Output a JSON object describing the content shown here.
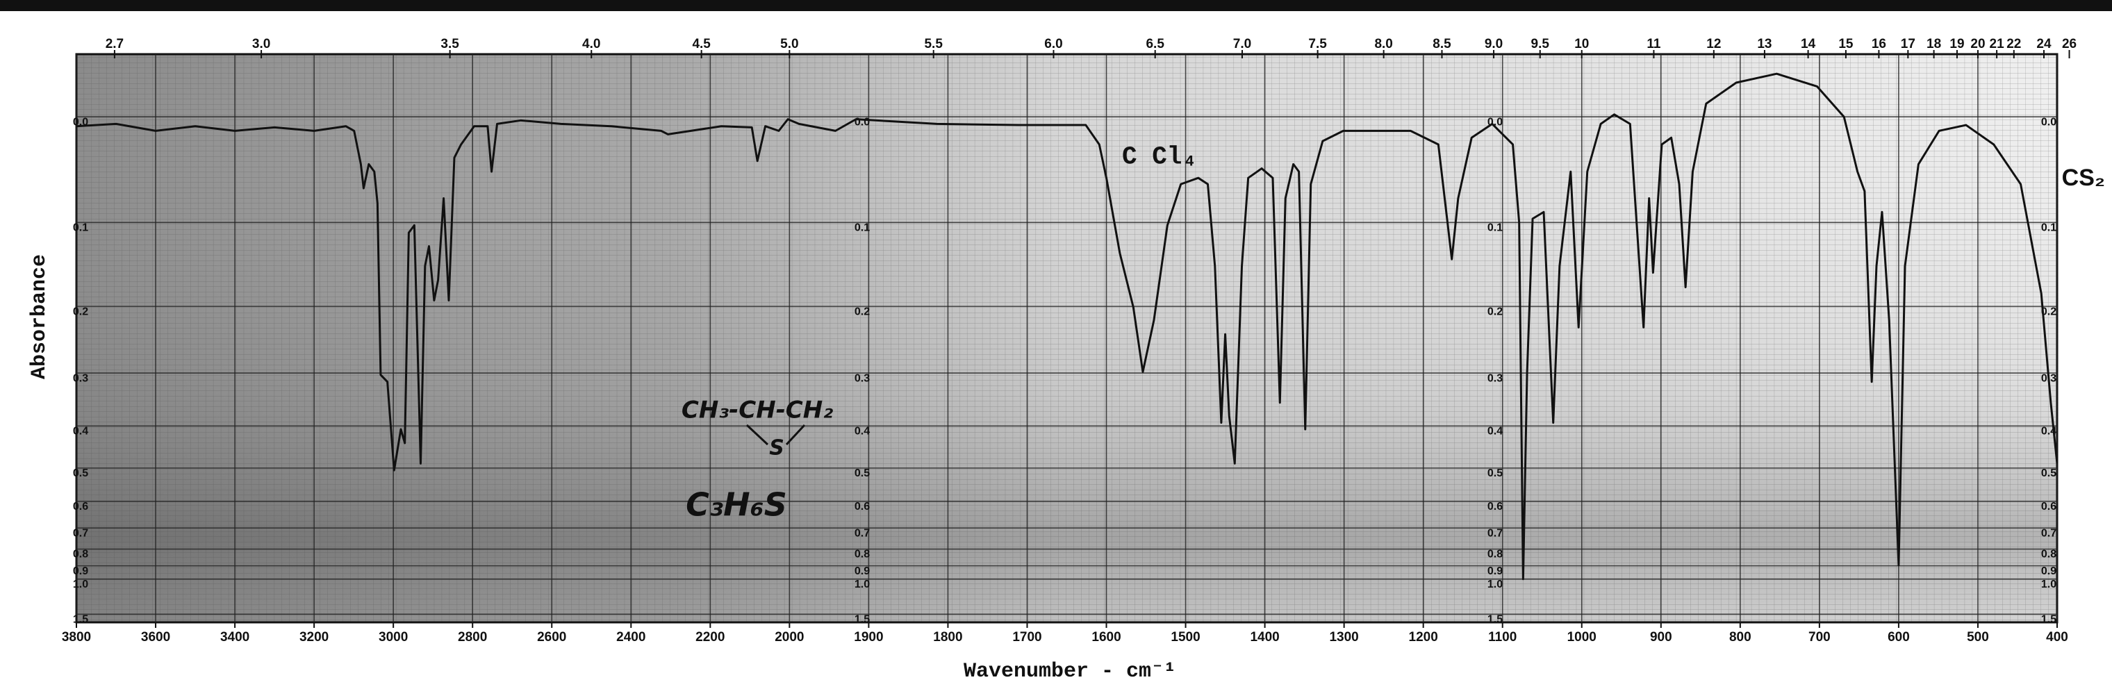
{
  "chart_data": {
    "type": "line",
    "x_label": "Wavenumber - cm⁻¹",
    "y_label": "Absorbance",
    "annotations": [
      "C Cl₄",
      "CS₂",
      "CH₃-CH-CH₂",
      "S",
      "C₃H₆S"
    ],
    "color": "#111111",
    "grid": true,
    "xlim": [
      3800,
      400
    ],
    "xticks": [
      3800,
      3600,
      3400,
      3200,
      3000,
      2800,
      2600,
      2400,
      2200,
      2000,
      1900,
      1800,
      1700,
      1600,
      1500,
      1400,
      1300,
      1200,
      1100,
      1000,
      900,
      800,
      700,
      600,
      500,
      400
    ],
    "x2ticks": [
      2.7,
      {
        "value": 3,
        "label": "3.0"
      },
      3.5,
      {
        "value": 4,
        "label": "4.0"
      },
      4.5,
      {
        "value": 5,
        "label": "5.0"
      },
      5.5,
      {
        "value": 6,
        "label": "6.0"
      },
      6.5,
      {
        "value": 7,
        "label": "7.0"
      },
      7.5,
      {
        "value": 8,
        "label": "8.0"
      },
      8.5,
      {
        "value": 9,
        "label": "9.0"
      },
      9.5,
      10,
      11,
      12,
      13,
      14,
      15,
      16,
      17,
      18,
      19,
      20,
      21,
      22,
      24,
      26
    ],
    "ylim": [
      -0.05,
      1.8
    ],
    "yticks": [
      {
        "value": 0,
        "label": "0.0"
      },
      0.1,
      0.2,
      0.3,
      0.4,
      0.5,
      0.6,
      0.7,
      0.8,
      0.9,
      {
        "value": 1,
        "label": "1.0"
      },
      1.5
    ],
    "x": [
      3800,
      3700,
      3600,
      3500,
      3400,
      3300,
      3200,
      3120,
      3099,
      3082,
      3075,
      3062,
      3048,
      3040,
      3032,
      3015,
      2998,
      2981,
      2971,
      2961,
      2947,
      2931,
      2920,
      2910,
      2897,
      2887,
      2873,
      2860,
      2846,
      2829,
      2796,
      2762,
      2752,
      2738,
      2678,
      2577,
      2450,
      2324,
      2307,
      2172,
      2095,
      2081,
      2061,
      2027,
      2004,
      1988,
      1942,
      1916,
      1814,
      1711,
      1626,
      1609,
      1600,
      1583,
      1566,
      1554,
      1540,
      1523,
      1506,
      1484,
      1472,
      1463,
      1455,
      1450,
      1445,
      1438,
      1429,
      1421,
      1404,
      1390,
      1381,
      1374,
      1364,
      1357,
      1349,
      1342,
      1327,
      1301,
      1216,
      1181,
      1164,
      1156,
      1139,
      1113,
      1087,
      1079,
      1074,
      1069,
      1062,
      1048,
      1036,
      1028,
      1014,
      1004,
      993,
      976,
      959,
      939,
      922,
      915,
      910,
      899,
      887,
      877,
      869,
      860,
      843,
      805,
      754,
      703,
      669,
      652,
      643,
      634,
      628,
      621,
      612,
      600,
      592,
      575,
      549,
      515,
      480,
      446,
      420,
      408,
      400
    ],
    "values": [
      0.008,
      0.006,
      0.012,
      0.008,
      0.012,
      0.009,
      0.012,
      0.008,
      0.012,
      0.042,
      0.065,
      0.042,
      0.049,
      0.08,
      0.303,
      0.315,
      0.506,
      0.407,
      0.438,
      0.111,
      0.103,
      0.488,
      0.149,
      0.126,
      0.192,
      0.166,
      0.075,
      0.192,
      0.036,
      0.024,
      0.008,
      0.008,
      0.049,
      0.006,
      0.003,
      0.006,
      0.008,
      0.012,
      0.015,
      0.008,
      0.009,
      0.039,
      0.008,
      0.012,
      0.002,
      0.006,
      0.012,
      0.002,
      0.006,
      0.007,
      0.007,
      0.024,
      0.055,
      0.134,
      0.201,
      0.298,
      0.219,
      0.103,
      0.061,
      0.055,
      0.061,
      0.149,
      0.393,
      0.239,
      0.379,
      0.488,
      0.149,
      0.055,
      0.046,
      0.055,
      0.353,
      0.075,
      0.042,
      0.049,
      0.407,
      0.061,
      0.021,
      0.012,
      0.012,
      0.024,
      0.141,
      0.075,
      0.018,
      0.006,
      0.024,
      0.1,
      1.0,
      0.3,
      0.096,
      0.089,
      0.393,
      0.149,
      0.049,
      0.229,
      0.049,
      0.006,
      -0.002,
      0.006,
      0.229,
      0.075,
      0.157,
      0.024,
      0.018,
      0.061,
      0.175,
      0.049,
      -0.011,
      -0.028,
      -0.035,
      -0.025,
      0.0,
      0.049,
      0.068,
      0.315,
      0.149,
      0.089,
      0.219,
      0.896,
      0.149,
      0.042,
      0.012,
      0.007,
      0.024,
      0.061,
      0.183,
      0.353,
      0.488
    ]
  }
}
